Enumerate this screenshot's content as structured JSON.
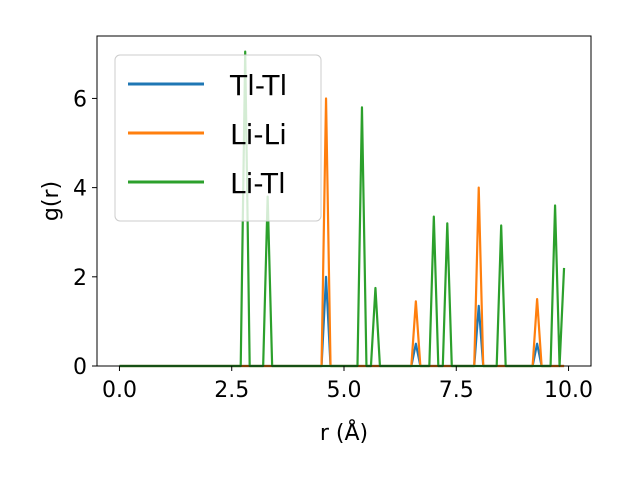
{
  "chart_data": {
    "type": "line",
    "title": "",
    "xlabel": "r (Å)",
    "ylabel": "g(r)",
    "xlim": [
      -0.5,
      10.5
    ],
    "ylim": [
      0,
      7.4
    ],
    "xticks": [
      0.0,
      2.5,
      5.0,
      7.5,
      10.0
    ],
    "xtick_labels": [
      "0.0",
      "2.5",
      "5.0",
      "7.5",
      "10.0"
    ],
    "yticks": [
      0,
      2,
      4,
      6
    ],
    "ytick_labels": [
      "0",
      "2",
      "4",
      "6"
    ],
    "grid": false,
    "legend_position": "upper-left",
    "colors": {
      "Tl-Tl": "#1f77b4",
      "Li-Li": "#ff7f0e",
      "Li-Tl": "#2ca02c"
    },
    "series": [
      {
        "name": "Tl-Tl",
        "color": "#1f77b4",
        "x": [
          0.0,
          4.5,
          4.6,
          4.7,
          6.5,
          6.6,
          6.7,
          7.9,
          8.0,
          8.1,
          9.2,
          9.3,
          9.4,
          9.9
        ],
        "y": [
          0,
          0,
          2.0,
          0,
          0,
          0.5,
          0,
          0,
          1.35,
          0,
          0,
          0.5,
          0,
          0
        ]
      },
      {
        "name": "Li-Li",
        "color": "#ff7f0e",
        "x": [
          0.0,
          4.5,
          4.6,
          4.7,
          6.5,
          6.6,
          6.7,
          7.9,
          8.0,
          8.1,
          9.2,
          9.3,
          9.4,
          9.9
        ],
        "y": [
          0,
          0,
          6.0,
          0,
          0,
          1.45,
          0,
          0,
          4.0,
          0,
          0,
          1.5,
          0,
          0
        ]
      },
      {
        "name": "Li-Tl",
        "color": "#2ca02c",
        "x": [
          0.0,
          2.7,
          2.8,
          2.9,
          3.2,
          3.3,
          3.4,
          5.3,
          5.4,
          5.5,
          5.6,
          5.7,
          5.8,
          6.9,
          7.0,
          7.1,
          7.2,
          7.3,
          7.4,
          8.4,
          8.5,
          8.6,
          9.6,
          9.7,
          9.8,
          9.9
        ],
        "y": [
          0,
          0,
          7.05,
          0,
          0,
          3.8,
          0,
          0,
          5.8,
          0,
          0,
          1.75,
          0,
          0,
          3.35,
          0,
          0,
          3.2,
          0,
          0,
          3.15,
          0,
          0,
          3.6,
          0,
          2.2
        ]
      }
    ]
  }
}
